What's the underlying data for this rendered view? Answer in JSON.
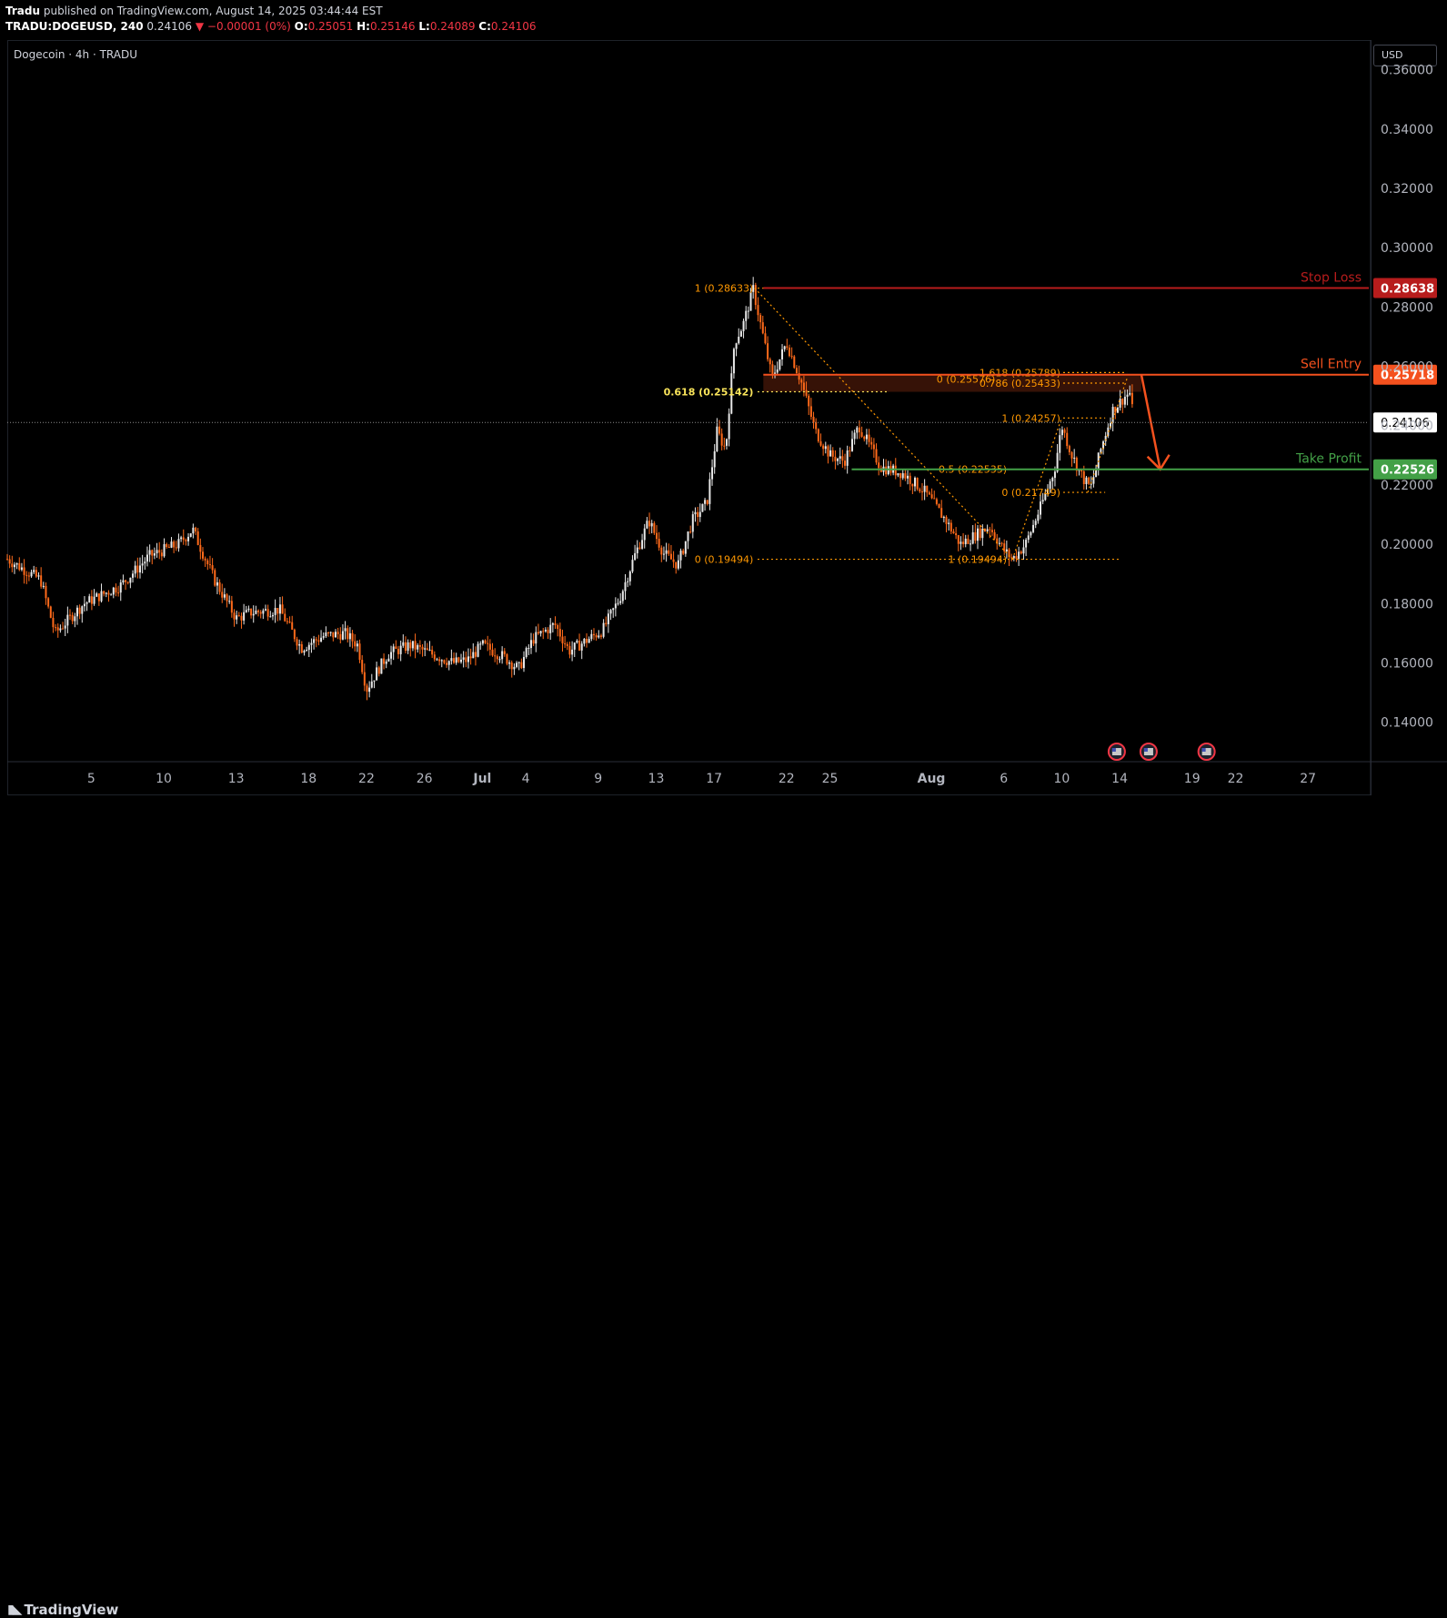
{
  "header": {
    "publisher": "Tradu",
    "published_text": "published on TradingView.com, August 14, 2025 03:44:44 EST",
    "symbol": "TRADU:DOGEUSD, 240",
    "last": "0.24106",
    "change": "−0.00001 (0%)",
    "o_label": "O:",
    "o": "0.25051",
    "h_label": "H:",
    "h": "0.25146",
    "l_label": "L:",
    "l": "0.24089",
    "c_label": "C:",
    "c": "0.24106"
  },
  "chart_label": "Dogecoin · 4h · TRADU",
  "currency_button": "USD",
  "footer": {
    "brand": "TradingView"
  },
  "colors": {
    "background": "#000000",
    "up": "#e8e8e8",
    "down": "#ff6a1a",
    "stop_loss": "#b71c1c",
    "sell_entry": "#f4511e",
    "take_profit": "#43a047",
    "fib": "#ff9800",
    "fib_yellow": "#f9e45a"
  },
  "chart_data": {
    "type": "candlestick",
    "y_axis": {
      "min": 0.127,
      "max": 0.37,
      "ticks": [
        0.36,
        0.34,
        0.32,
        0.3,
        0.28,
        0.26,
        0.24,
        0.22,
        0.2,
        0.18,
        0.16,
        0.14
      ],
      "tick_labels": [
        "0.36000",
        "0.34000",
        "0.32000",
        "0.30000",
        "0.28000",
        "0.26000",
        "0.24000",
        "0.22000",
        "0.20000",
        "0.18000",
        "0.16000",
        "0.14000"
      ]
    },
    "x_axis": {
      "tick_days": [
        -26,
        -21,
        -16,
        -11,
        -7,
        -3,
        1,
        4,
        9,
        13,
        17,
        22,
        25,
        32,
        37,
        41,
        45,
        50,
        53,
        58
      ],
      "tick_labels": [
        "5",
        "10",
        "13",
        "18",
        "22",
        "26",
        "Jul",
        "4",
        "9",
        "13",
        "17",
        "22",
        "25",
        "Aug",
        "6",
        "10",
        "14",
        "19",
        "22",
        "27"
      ],
      "day_range": [
        -31.8,
        62.2
      ]
    },
    "price_series": [
      [
        -31.8,
        0.195
      ],
      [
        -29.5,
        0.188
      ],
      [
        -28.5,
        0.17
      ],
      [
        -26.5,
        0.18
      ],
      [
        -24,
        0.186
      ],
      [
        -22,
        0.196
      ],
      [
        -20,
        0.2
      ],
      [
        -19,
        0.205
      ],
      [
        -17.5,
        0.188
      ],
      [
        -16,
        0.175
      ],
      [
        -15,
        0.177
      ],
      [
        -13,
        0.178
      ],
      [
        -11.5,
        0.165
      ],
      [
        -10,
        0.169
      ],
      [
        -8.5,
        0.17
      ],
      [
        -7.6,
        0.166
      ],
      [
        -7,
        0.151
      ],
      [
        -6.3,
        0.157
      ],
      [
        -5.5,
        0.163
      ],
      [
        -4,
        0.166
      ],
      [
        -2.5,
        0.163
      ],
      [
        -1,
        0.16
      ],
      [
        0,
        0.161
      ],
      [
        1,
        0.166
      ],
      [
        2.5,
        0.162
      ],
      [
        3.5,
        0.158
      ],
      [
        4.5,
        0.168
      ],
      [
        6,
        0.173
      ],
      [
        7,
        0.164
      ],
      [
        8,
        0.167
      ],
      [
        9.3,
        0.171
      ],
      [
        10.5,
        0.182
      ],
      [
        11.5,
        0.196
      ],
      [
        12.5,
        0.208
      ],
      [
        13.5,
        0.197
      ],
      [
        14.5,
        0.193
      ],
      [
        15.5,
        0.208
      ],
      [
        16.5,
        0.214
      ],
      [
        17.2,
        0.238
      ],
      [
        17.8,
        0.232
      ],
      [
        18.4,
        0.268
      ],
      [
        19,
        0.274
      ],
      [
        19.7,
        0.286
      ],
      [
        20.3,
        0.272
      ],
      [
        21,
        0.256
      ],
      [
        22,
        0.268
      ],
      [
        23,
        0.255
      ],
      [
        24,
        0.238
      ],
      [
        25,
        0.23
      ],
      [
        26,
        0.228
      ],
      [
        27,
        0.24
      ],
      [
        28.5,
        0.226
      ],
      [
        30,
        0.224
      ],
      [
        31.5,
        0.218
      ],
      [
        33,
        0.208
      ],
      [
        34,
        0.2
      ],
      [
        35,
        0.203
      ],
      [
        36,
        0.206
      ],
      [
        37,
        0.198
      ],
      [
        37.6,
        0.195
      ],
      [
        38.5,
        0.2
      ],
      [
        39.5,
        0.212
      ],
      [
        40.5,
        0.225
      ],
      [
        41,
        0.24
      ],
      [
        41.7,
        0.23
      ],
      [
        42.5,
        0.222
      ],
      [
        43,
        0.219
      ],
      [
        43.7,
        0.232
      ],
      [
        44.5,
        0.245
      ],
      [
        45.4,
        0.25
      ],
      [
        45.7,
        0.251
      ],
      [
        46.0,
        0.2411
      ]
    ],
    "levels": [
      {
        "label": "Stop Loss",
        "value": 0.28638,
        "value_label": "0.28638",
        "start_day": 20.4
      },
      {
        "label": "Sell Entry",
        "value": 0.25718,
        "value_label": "0.25718",
        "start_day": 20.4
      },
      {
        "label": "Take Profit",
        "value": 0.22526,
        "value_label": "0.22526",
        "start_day": 26.5
      }
    ],
    "current_price": {
      "value": 0.24106,
      "label": "0.24106"
    },
    "fib_labels": [
      {
        "text": "1 (0.28633)",
        "value": 0.28633,
        "day": 19.9,
        "anchor": "end",
        "color": "fib"
      },
      {
        "text": "0.618 (0.25142)",
        "value": 0.25142,
        "day": 19.9,
        "anchor": "end",
        "color": "fib_yellow"
      },
      {
        "text": "0 (0.19494)",
        "value": 0.19494,
        "day": 19.9,
        "anchor": "end",
        "color": "fib"
      },
      {
        "text": "1.618 (0.25789)",
        "value": 0.25789,
        "day": 41.1,
        "anchor": "end",
        "color": "fib"
      },
      {
        "text": "0 (0.25576)",
        "value": 0.25576,
        "day": 36.6,
        "anchor": "end",
        "color": "fib"
      },
      {
        "text": "0.786 (0.25433)",
        "value": 0.25433,
        "day": 41.1,
        "anchor": "end",
        "color": "fib"
      },
      {
        "text": "1 (0.24257)",
        "value": 0.24257,
        "day": 41.1,
        "anchor": "end",
        "color": "fib"
      },
      {
        "text": "0.5 (0.22535)",
        "value": 0.22535,
        "day": 37.4,
        "anchor": "end",
        "color": "fib"
      },
      {
        "text": "0 (0.21749)",
        "value": 0.21749,
        "day": 41.1,
        "anchor": "end",
        "color": "fib"
      },
      {
        "text": "1 (0.19494)",
        "value": 0.19494,
        "day": 37.4,
        "anchor": "end",
        "color": "fib"
      }
    ]
  }
}
